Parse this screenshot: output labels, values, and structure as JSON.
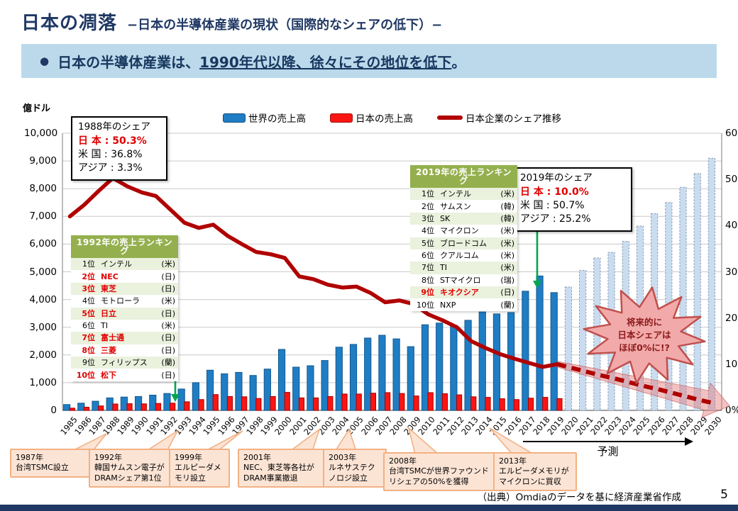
{
  "slide": {
    "title": "日本の凋落",
    "subtitle": "−日本の半導体産業の現状（国際的なシェアの低下）−",
    "banner": {
      "bullet": "●",
      "lead": "日本の半導体産業は、",
      "underlined": "1990年代以降、徐々にその地位を低下",
      "tail": "。"
    },
    "footer": {
      "source": "（出典）Omdiaのデータを基に経済産業省作成",
      "page": "5"
    }
  },
  "chart": {
    "unit_label": "億ドル",
    "legend": [
      {
        "label": "世界の売上高",
        "swatch": "bar",
        "color": "#1F7DC4"
      },
      {
        "label": "日本の売上高",
        "swatch": "bar",
        "color": "#FB1512"
      },
      {
        "label": "日本企業のシェア推移",
        "swatch": "line",
        "color": "#B00000"
      }
    ],
    "left_axis_ticks": [
      "10,000",
      "9,000",
      "8,000",
      "7,000",
      "6,000",
      "5,000",
      "4,000",
      "3,000",
      "2,000",
      "1,000",
      "0"
    ],
    "right_axis_ticks": [
      "60%",
      "50%",
      "40%",
      "30%",
      "20%",
      "10%",
      "0%"
    ],
    "forecast_label": "予測",
    "colors": {
      "world_bar": "#1F7DC4",
      "world_bar_border": "#16588F",
      "japan_bar": "#FB1512",
      "japan_bar_border": "#A50000",
      "forecast_bar": "#C9DCF0",
      "forecast_bar_border": "#8A9BB0",
      "share_line": "#B00000",
      "gridline": "#C9C9C9",
      "axis": "#9A9A9A",
      "green_arrow": "#00A650"
    }
  },
  "chart_data": {
    "type": "bar+line",
    "title": "",
    "xlabel": "",
    "ylabel_left": "億ドル",
    "ylabel_right": "%",
    "ylim_left": [
      0,
      10000
    ],
    "ylim_right": [
      0,
      60
    ],
    "grid": true,
    "legend_position": "top-center",
    "forecast_from_year": 2020,
    "x": [
      1985,
      1986,
      1987,
      1988,
      1989,
      1990,
      1991,
      1992,
      1993,
      1994,
      1995,
      1996,
      1997,
      1998,
      1999,
      2000,
      2001,
      2002,
      2003,
      2004,
      2005,
      2006,
      2007,
      2008,
      2009,
      2010,
      2011,
      2012,
      2013,
      2014,
      2015,
      2016,
      2017,
      2018,
      2019,
      2020,
      2021,
      2022,
      2023,
      2024,
      2025,
      2026,
      2027,
      2028,
      2029,
      2030
    ],
    "series": [
      {
        "name": "世界の売上高",
        "type": "bar",
        "axis": "left",
        "unit": "億ドル",
        "values": [
          210,
          260,
          330,
          450,
          480,
          500,
          550,
          610,
          770,
          1000,
          1450,
          1320,
          1370,
          1260,
          1490,
          2200,
          1560,
          1610,
          1800,
          2280,
          2380,
          2610,
          2710,
          2580,
          2300,
          3090,
          3150,
          3070,
          3250,
          3550,
          3480,
          3530,
          4300,
          4850,
          4250,
          4450,
          5050,
          5500,
          5700,
          6100,
          6650,
          7100,
          7500,
          8050,
          8550,
          9100
        ]
      },
      {
        "name": "日本の売上高",
        "type": "bar",
        "axis": "left",
        "unit": "億ドル",
        "values": [
          80,
          115,
          160,
          230,
          240,
          235,
          250,
          260,
          310,
          390,
          570,
          500,
          490,
          430,
          500,
          650,
          450,
          450,
          500,
          590,
          590,
          620,
          640,
          610,
          520,
          640,
          600,
          560,
          490,
          470,
          420,
          390,
          440,
          470,
          425,
          null,
          null,
          null,
          null,
          null,
          null,
          null,
          null,
          null,
          null,
          null
        ]
      },
      {
        "name": "日本企業のシェア推移",
        "type": "line",
        "axis": "right",
        "unit": "%",
        "values": [
          42,
          44.5,
          47.5,
          50.3,
          48.5,
          47.2,
          46.4,
          43.5,
          40.6,
          39.5,
          40.2,
          37.8,
          36,
          34.3,
          33.8,
          33,
          29,
          28.4,
          27.2,
          26.6,
          26.8,
          25.4,
          23.4,
          23.8,
          23,
          20.8,
          19.5,
          18,
          15,
          13.5,
          12.2,
          11.2,
          10.3,
          9.4,
          10,
          9.2,
          8.4,
          7.6,
          6.9,
          6.1,
          5.3,
          4.6,
          3.8,
          3,
          2.2,
          1.5
        ]
      }
    ]
  },
  "annotations": {
    "share_1988": {
      "title": "1988年のシェア",
      "rows": [
        {
          "label": "日 本",
          "value": "50.3%",
          "highlight": true
        },
        {
          "label": "米 国",
          "value": "36.8%",
          "highlight": false
        },
        {
          "label": "アジア",
          "value": " 3.3%",
          "highlight": false
        }
      ]
    },
    "share_2019": {
      "title": "2019年のシェア",
      "rows": [
        {
          "label": "日 本",
          "value": "10.0%",
          "highlight": true
        },
        {
          "label": "米 国",
          "value": "50.7%",
          "highlight": false
        },
        {
          "label": "アジア",
          "value": "25.2%",
          "highlight": false
        }
      ]
    },
    "ranking_1992": {
      "title": "1992年の売上ランキング",
      "rows": [
        {
          "rank": "1位",
          "name": "インテル",
          "country": "(米)",
          "jp": false
        },
        {
          "rank": "2位",
          "name": "NEC",
          "country": "(日)",
          "jp": true
        },
        {
          "rank": "3位",
          "name": "東芝",
          "country": "(日)",
          "jp": true
        },
        {
          "rank": "4位",
          "name": "モトローラ",
          "country": "(米)",
          "jp": false
        },
        {
          "rank": "5位",
          "name": "日立",
          "country": "(日)",
          "jp": true
        },
        {
          "rank": "6位",
          "name": "TI",
          "country": "(米)",
          "jp": false
        },
        {
          "rank": "7位",
          "name": "富士通",
          "country": "(日)",
          "jp": true
        },
        {
          "rank": "8位",
          "name": "三菱",
          "country": "(日)",
          "jp": true
        },
        {
          "rank": "9位",
          "name": "フィリップス",
          "country": "(蘭)",
          "jp": false
        },
        {
          "rank": "10位",
          "name": "松下",
          "country": "(日)",
          "jp": true
        }
      ]
    },
    "ranking_2019": {
      "title": "2019年の売上ランキング",
      "rows": [
        {
          "rank": "1位",
          "name": "インテル",
          "country": "(米)",
          "jp": false
        },
        {
          "rank": "2位",
          "name": "サムスン",
          "country": "(韓)",
          "jp": false
        },
        {
          "rank": "3位",
          "name": "SK",
          "country": "(韓)",
          "jp": false
        },
        {
          "rank": "4位",
          "name": "マイクロン",
          "country": "(米)",
          "jp": false
        },
        {
          "rank": "5位",
          "name": "ブロードコム",
          "country": "(米)",
          "jp": false
        },
        {
          "rank": "6位",
          "name": "クアルコム",
          "country": "(米)",
          "jp": false
        },
        {
          "rank": "7位",
          "name": "TI",
          "country": "(米)",
          "jp": false
        },
        {
          "rank": "8位",
          "name": "STマイクロ",
          "country": "(瑞)",
          "jp": false
        },
        {
          "rank": "9位",
          "name": "キオクシア",
          "country": "(日)",
          "jp": true
        },
        {
          "rank": "10位",
          "name": "NXP",
          "country": "(蘭)",
          "jp": false
        }
      ]
    },
    "starburst": {
      "lines": [
        "将来的に",
        "日本シェアは",
        "ほぼ0%に!?"
      ]
    },
    "timeline": [
      {
        "year": "1987年",
        "text": "台湾TSMC設立"
      },
      {
        "year": "1992年",
        "text": "韓国サムスン電子がDRAMシェア第1位"
      },
      {
        "year": "1999年",
        "text": "エルピーダメモリ設立"
      },
      {
        "year": "2001年",
        "text": "NEC、東芝等各社がDRAM事業撤退"
      },
      {
        "year": "2003年",
        "text": "ルネサステクノロジ設立"
      },
      {
        "year": "2008年",
        "text": "台湾TSMCが世界ファウンドリシェアの50%を獲得"
      },
      {
        "year": "2013年",
        "text": "エルピーダメモリがマイクロンに買収"
      }
    ]
  }
}
